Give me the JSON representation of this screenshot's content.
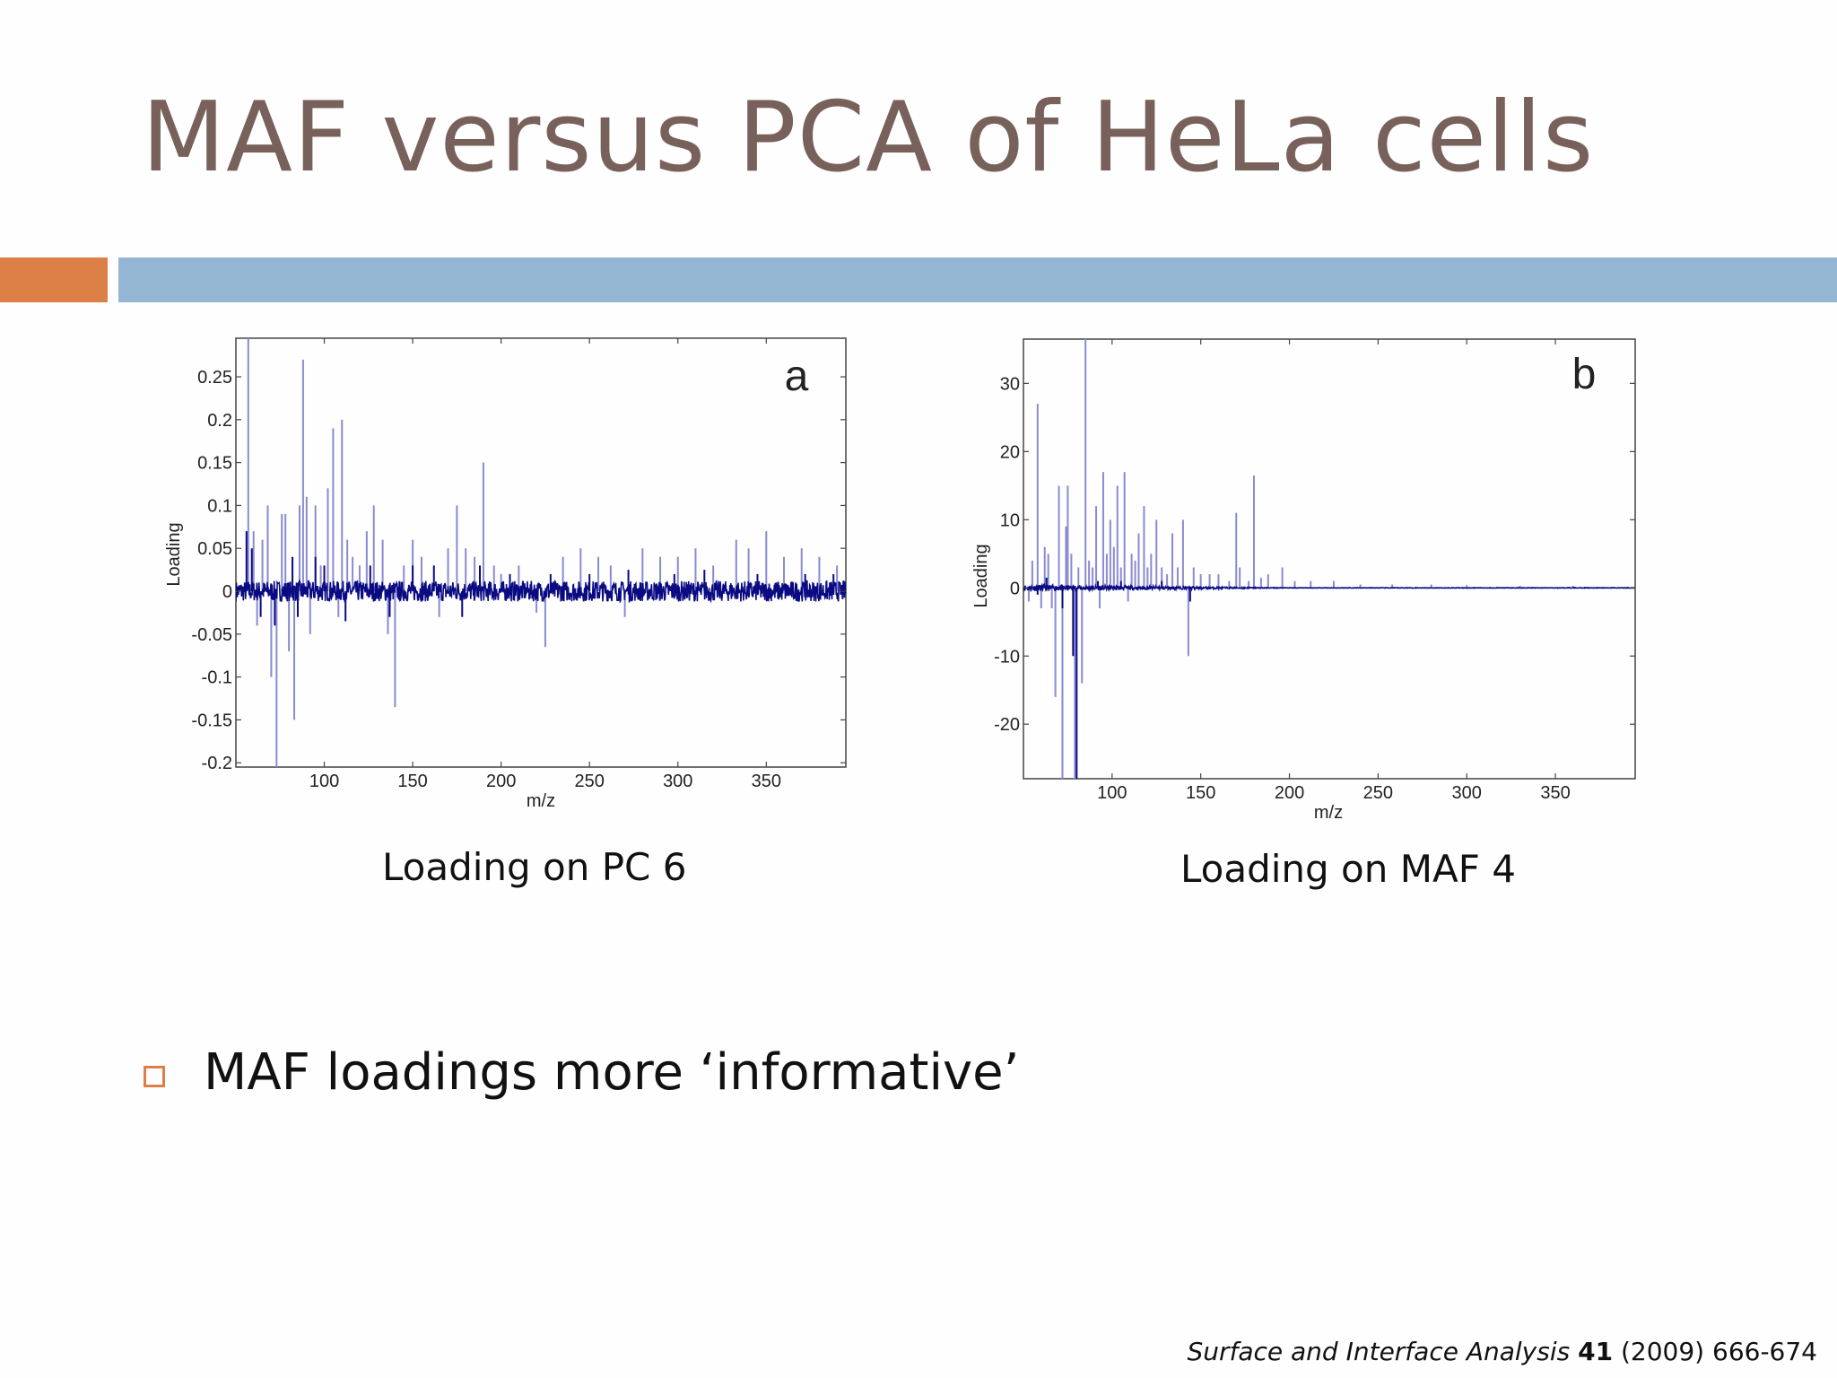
{
  "slide": {
    "title": "MAF versus PCA of HeLa cells",
    "bullet": "MAF loadings more ‘informative’",
    "citation": {
      "journal": "Surface and Interface Analysis",
      "volume": "41",
      "rest": "(2009) 666-674"
    }
  },
  "colors": {
    "title": "#78615a",
    "accent_orange": "#dd8047",
    "accent_blue": "#94b6d2",
    "series_dark": "#0a0a82",
    "series_light": "#8a8ad2"
  },
  "chart_data": [
    {
      "type": "line",
      "panel_label": "a",
      "caption": "Loading on PC 6",
      "xlabel": "m/z",
      "ylabel": "Loading",
      "xlim": [
        50,
        395
      ],
      "ylim": [
        -0.205,
        0.295
      ],
      "xticks": [
        100,
        150,
        200,
        250,
        300,
        350
      ],
      "xtick_labels": [
        "100",
        "150",
        "200",
        "250",
        "300",
        "350"
      ],
      "yticks": [
        0.25,
        0.2,
        0.15,
        0.1,
        0.05,
        0,
        -0.05,
        -0.1,
        -0.15,
        -0.2
      ],
      "ytick_labels": [
        "0.25",
        "0.2",
        "0.15",
        "0.1",
        "0.05",
        "0",
        "-0.05",
        "-0.1",
        "-0.15",
        "-0.2"
      ],
      "grid": false,
      "baseline_noise": 0.012,
      "noise_seed": 7,
      "series": [
        {
          "style": "light",
          "x": [
            57,
            60,
            62,
            65,
            68,
            70,
            73,
            76,
            78,
            80,
            83,
            86,
            88,
            90,
            92,
            95,
            98,
            102,
            105,
            108,
            110,
            113,
            116,
            120,
            124,
            128,
            133,
            136,
            140,
            145,
            150,
            155,
            165,
            170,
            175,
            180,
            185,
            190,
            196,
            200,
            210,
            220,
            225,
            235,
            245,
            255,
            262,
            270,
            280,
            290,
            300,
            310,
            320,
            333,
            340,
            350,
            360,
            370,
            380,
            390
          ],
          "y": [
            0.295,
            0.07,
            -0.04,
            0.06,
            0.1,
            -0.1,
            -0.205,
            0.09,
            0.09,
            -0.07,
            -0.15,
            0.1,
            0.27,
            0.11,
            -0.05,
            0.1,
            0.03,
            0.12,
            0.19,
            -0.03,
            0.2,
            0.06,
            0.04,
            0.03,
            0.07,
            0.1,
            0.06,
            -0.05,
            -0.135,
            0.03,
            0.06,
            0.04,
            -0.03,
            0.05,
            0.1,
            0.05,
            0.04,
            0.15,
            0.03,
            0.02,
            0.03,
            -0.025,
            -0.065,
            0.04,
            0.05,
            0.04,
            0.03,
            -0.03,
            0.05,
            0.04,
            0.04,
            0.05,
            0.03,
            0.06,
            0.05,
            0.07,
            0.04,
            0.05,
            0.04,
            0.03
          ]
        },
        {
          "style": "dark",
          "x": [
            56,
            59,
            64,
            72,
            82,
            85,
            95,
            100,
            112,
            126,
            137,
            150,
            162,
            178,
            188,
            205,
            228,
            250,
            272,
            298,
            315,
            345,
            372,
            388
          ],
          "y": [
            0.07,
            0.05,
            -0.03,
            -0.04,
            0.04,
            -0.03,
            0.04,
            0.03,
            -0.035,
            0.03,
            -0.03,
            0.03,
            0.03,
            -0.03,
            0.03,
            0.02,
            0.02,
            0.02,
            0.025,
            0.02,
            0.025,
            0.02,
            0.02,
            0.02
          ]
        }
      ]
    },
    {
      "type": "line",
      "panel_label": "b",
      "caption": "Loading on MAF 4",
      "xlabel": "m/z",
      "ylabel": "Loading",
      "xlim": [
        50,
        395
      ],
      "ylim": [
        -28,
        36.5
      ],
      "xticks": [
        100,
        150,
        200,
        250,
        300,
        350
      ],
      "xtick_labels": [
        "100",
        "150",
        "200",
        "250",
        "300",
        "350"
      ],
      "yticks": [
        30,
        20,
        10,
        0,
        -10,
        -20
      ],
      "ytick_labels": [
        "30",
        "20",
        "10",
        "0",
        "-10",
        "-20"
      ],
      "grid": false,
      "baseline_noise": 0.45,
      "noise_seed": 11,
      "series": [
        {
          "style": "light",
          "x": [
            53,
            55,
            58,
            60,
            62,
            64,
            66,
            68,
            70,
            72,
            74,
            75,
            77,
            79,
            81,
            83,
            85,
            87,
            89,
            91,
            93,
            95,
            97,
            99,
            101,
            103,
            105,
            107,
            109,
            111,
            113,
            115,
            118,
            120,
            122,
            125,
            128,
            131,
            134,
            137,
            140,
            143,
            146,
            150,
            155,
            160,
            166,
            170,
            172,
            177,
            180,
            184,
            188,
            196,
            203,
            212,
            225,
            240,
            258,
            280,
            300,
            330,
            360
          ],
          "y": [
            -2,
            4,
            27,
            -3,
            6,
            5,
            -3,
            -16,
            15,
            -28,
            9,
            15,
            5,
            -28,
            3,
            -14,
            36.5,
            4,
            3,
            12,
            -3,
            17,
            5,
            10,
            6,
            15,
            3,
            17,
            -2,
            5,
            4,
            8,
            12,
            3,
            5,
            10,
            3,
            2,
            8,
            3,
            10,
            -10,
            3,
            2,
            2,
            2,
            1,
            11,
            3,
            1,
            16.5,
            1.5,
            2,
            3,
            1,
            1,
            1,
            0.5,
            0.5,
            0.5,
            0.4,
            0.3,
            0.3
          ]
        },
        {
          "style": "dark",
          "x": [
            58,
            63,
            72,
            78,
            80,
            92,
            105,
            128,
            144
          ],
          "y": [
            -1,
            1.5,
            -3,
            -10,
            -28,
            1,
            1,
            1,
            -2
          ]
        }
      ]
    }
  ]
}
